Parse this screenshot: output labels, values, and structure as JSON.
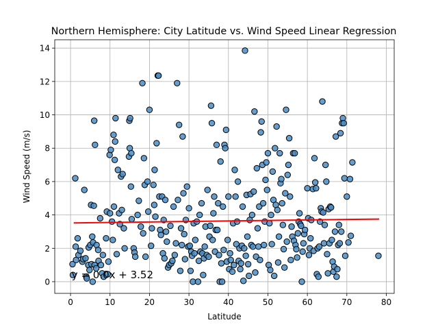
{
  "chart_data": {
    "type": "scatter",
    "title": "Northern Hemisphere: City Latitude vs. Wind Speed Linear Regression",
    "xlabel": "Latitude",
    "ylabel": "Wind Speed (m/s)",
    "xlim": [
      -4,
      82
    ],
    "ylim": [
      -0.7,
      14.5
    ],
    "xticks": [
      0,
      10,
      20,
      30,
      40,
      50,
      60,
      70,
      80
    ],
    "yticks": [
      0,
      2,
      4,
      6,
      8,
      10,
      12,
      14
    ],
    "grid": true,
    "point_color": "#4a8cc4",
    "point_edge_color": "#000000",
    "regression": {
      "equation": "y = 0.0x + 3.52",
      "slope": 0.003,
      "intercept": 3.52,
      "x_range": [
        0.8,
        78.2
      ],
      "color": "#ff0000",
      "label_position": [
        0.3,
        0.2
      ]
    },
    "points": [
      [
        0.5,
        1.05
      ],
      [
        0.6,
        0.4
      ],
      [
        1.2,
        6.2
      ],
      [
        1.3,
        2.1
      ],
      [
        1.4,
        1.3
      ],
      [
        1.8,
        2.6
      ],
      [
        2.0,
        1.6
      ],
      [
        2.5,
        1.85
      ],
      [
        3.0,
        1.2
      ],
      [
        3.2,
        1.35
      ],
      [
        3.5,
        5.5
      ],
      [
        3.8,
        1.4
      ],
      [
        4.0,
        0.3
      ],
      [
        4.1,
        0.2
      ],
      [
        4.5,
        1.0
      ],
      [
        4.6,
        2.05
      ],
      [
        4.8,
        0.7
      ],
      [
        5.0,
        2.2
      ],
      [
        5.2,
        4.6
      ],
      [
        5.3,
        1.05
      ],
      [
        5.5,
        2.7
      ],
      [
        5.6,
        0.0
      ],
      [
        5.7,
        2.35
      ],
      [
        5.9,
        4.55
      ],
      [
        6.0,
        9.65
      ],
      [
        6.1,
        1.0
      ],
      [
        6.2,
        8.2
      ],
      [
        6.5,
        0.8
      ],
      [
        6.6,
        2.2
      ],
      [
        7.0,
        1.9
      ],
      [
        7.1,
        1.25
      ],
      [
        7.5,
        3.8
      ],
      [
        7.7,
        1.0
      ],
      [
        8.0,
        0.5
      ],
      [
        8.2,
        1.6
      ],
      [
        8.4,
        0.3
      ],
      [
        9.0,
        2.6
      ],
      [
        9.2,
        4.2
      ],
      [
        9.4,
        0.45
      ],
      [
        9.6,
        1.2
      ],
      [
        9.9,
        7.6
      ],
      [
        10.0,
        4.1
      ],
      [
        10.2,
        7.9
      ],
      [
        10.5,
        3.6
      ],
      [
        10.7,
        2.5
      ],
      [
        10.9,
        8.8
      ],
      [
        11.0,
        4.5
      ],
      [
        11.2,
        7.3
      ],
      [
        11.3,
        8.4
      ],
      [
        11.4,
        9.8
      ],
      [
        11.7,
        1.65
      ],
      [
        12.0,
        6.7
      ],
      [
        12.3,
        4.1
      ],
      [
        12.5,
        3.45
      ],
      [
        12.8,
        6.3
      ],
      [
        13.0,
        4.3
      ],
      [
        13.2,
        6.45
      ],
      [
        13.5,
        3.2
      ],
      [
        13.7,
        2.0
      ],
      [
        14.8,
        7.5
      ],
      [
        14.9,
        9.65
      ],
      [
        15.0,
        8.0
      ],
      [
        15.1,
        9.8
      ],
      [
        15.3,
        5.7
      ],
      [
        15.4,
        7.7
      ],
      [
        15.5,
        3.75
      ],
      [
        16.0,
        2.0
      ],
      [
        16.2,
        1.75
      ],
      [
        16.4,
        1.5
      ],
      [
        17.0,
        4.0
      ],
      [
        17.3,
        4.85
      ],
      [
        17.8,
        3.3
      ],
      [
        18.2,
        11.9
      ],
      [
        18.4,
        2.9
      ],
      [
        18.6,
        7.4
      ],
      [
        18.8,
        5.8
      ],
      [
        19.0,
        1.5
      ],
      [
        19.5,
        6.0
      ],
      [
        19.7,
        4.2
      ],
      [
        20.0,
        10.3
      ],
      [
        20.4,
        2.15
      ],
      [
        20.6,
        3.2
      ],
      [
        21.0,
        5.8
      ],
      [
        21.2,
        4.6
      ],
      [
        21.3,
        6.7
      ],
      [
        21.5,
        3.9
      ],
      [
        21.8,
        8.3
      ],
      [
        22.1,
        12.35
      ],
      [
        22.3,
        12.35
      ],
      [
        22.5,
        5.1
      ],
      [
        22.7,
        3.1
      ],
      [
        22.9,
        2.8
      ],
      [
        23.2,
        5.1
      ],
      [
        23.4,
        1.7
      ],
      [
        23.6,
        3.7
      ],
      [
        23.8,
        1.4
      ],
      [
        24.0,
        4.9
      ],
      [
        24.2,
        3.0
      ],
      [
        24.4,
        2.4
      ],
      [
        24.7,
        0.85
      ],
      [
        25.0,
        1.0
      ],
      [
        25.3,
        3.35
      ],
      [
        25.5,
        1.1
      ],
      [
        25.8,
        1.25
      ],
      [
        26.1,
        4.5
      ],
      [
        26.4,
        1.6
      ],
      [
        26.7,
        2.3
      ],
      [
        27.0,
        11.9
      ],
      [
        27.2,
        4.9
      ],
      [
        27.5,
        9.4
      ],
      [
        27.8,
        0.65
      ],
      [
        28.0,
        3.2
      ],
      [
        28.2,
        2.2
      ],
      [
        28.4,
        8.7
      ],
      [
        28.6,
        5.3
      ],
      [
        28.8,
        2.85
      ],
      [
        29.0,
        1.35
      ],
      [
        29.2,
        3.7
      ],
      [
        29.5,
        5.7
      ],
      [
        29.8,
        2.1
      ],
      [
        30.0,
        4.4
      ],
      [
        30.2,
        2.15
      ],
      [
        30.4,
        0.65
      ],
      [
        30.6,
        1.8
      ],
      [
        30.8,
        1.55
      ],
      [
        31.0,
        0.0
      ],
      [
        31.2,
        3.5
      ],
      [
        31.4,
        1.7
      ],
      [
        31.6,
        2.5
      ],
      [
        32.0,
        3.6
      ],
      [
        32.3,
        0.0
      ],
      [
        32.5,
        1.25
      ],
      [
        32.7,
        4.0
      ],
      [
        32.9,
        1.8
      ],
      [
        33.2,
        4.7
      ],
      [
        33.4,
        1.7
      ],
      [
        33.6,
        0.4
      ],
      [
        33.8,
        1.4
      ],
      [
        34.0,
        2.1
      ],
      [
        34.2,
        3.3
      ],
      [
        34.5,
        1.6
      ],
      [
        34.7,
        5.5
      ],
      [
        35.0,
        1.5
      ],
      [
        35.2,
        2.7
      ],
      [
        35.4,
        3.35
      ],
      [
        35.6,
        10.55
      ],
      [
        35.8,
        9.5
      ],
      [
        36.0,
        2.5
      ],
      [
        36.2,
        4.1
      ],
      [
        36.4,
        5.1
      ],
      [
        36.6,
        1.8
      ],
      [
        36.8,
        3.1
      ],
      [
        37.0,
        8.2
      ],
      [
        37.2,
        3.1
      ],
      [
        37.4,
        4.7
      ],
      [
        37.6,
        1.6
      ],
      [
        37.8,
        0.0
      ],
      [
        38.0,
        7.2
      ],
      [
        38.2,
        1.1
      ],
      [
        38.4,
        0.0
      ],
      [
        38.6,
        4.5
      ],
      [
        38.8,
        1.9
      ],
      [
        39.0,
        8.2
      ],
      [
        39.2,
        8.0
      ],
      [
        39.4,
        9.1
      ],
      [
        39.6,
        1.2
      ],
      [
        39.8,
        2.5
      ],
      [
        40.0,
        5.1
      ],
      [
        40.2,
        0.75
      ],
      [
        40.4,
        1.7
      ],
      [
        40.6,
        1.3
      ],
      [
        41.0,
        0.6
      ],
      [
        41.2,
        3.5
      ],
      [
        41.4,
        1.0
      ],
      [
        41.6,
        6.7
      ],
      [
        41.8,
        5.1
      ],
      [
        42.0,
        2.25
      ],
      [
        42.2,
        3.6
      ],
      [
        42.4,
        6.0
      ],
      [
        42.6,
        1.25
      ],
      [
        42.8,
        2.0
      ],
      [
        43.0,
        0.75
      ],
      [
        43.2,
        1.1
      ],
      [
        43.4,
        2.15
      ],
      [
        43.6,
        4.5
      ],
      [
        43.8,
        0.05
      ],
      [
        44.0,
        2.0
      ],
      [
        44.2,
        13.85
      ],
      [
        44.4,
        1.55
      ],
      [
        44.6,
        5.2
      ],
      [
        44.8,
        2.7
      ],
      [
        45.0,
        1.05
      ],
      [
        45.2,
        0.35
      ],
      [
        45.4,
        3.7
      ],
      [
        45.6,
        5.25
      ],
      [
        45.8,
        2.2
      ],
      [
        46.0,
        4.0
      ],
      [
        46.2,
        2.1
      ],
      [
        46.4,
        5.4
      ],
      [
        46.6,
        10.2
      ],
      [
        46.8,
        0.55
      ],
      [
        47.0,
        1.5
      ],
      [
        47.2,
        6.8
      ],
      [
        47.4,
        3.2
      ],
      [
        47.6,
        2.1
      ],
      [
        47.8,
        4.5
      ],
      [
        48.0,
        1.3
      ],
      [
        48.2,
        8.95
      ],
      [
        48.4,
        9.6
      ],
      [
        48.6,
        7.0
      ],
      [
        48.8,
        4.7
      ],
      [
        49.0,
        2.2
      ],
      [
        49.2,
        3.6
      ],
      [
        49.4,
        6.1
      ],
      [
        49.6,
        7.15
      ],
      [
        49.8,
        5.5
      ],
      [
        50.0,
        7.7
      ],
      [
        50.2,
        1.0
      ],
      [
        50.4,
        3.5
      ],
      [
        50.6,
        0.7
      ],
      [
        50.8,
        4.0
      ],
      [
        51.0,
        2.25
      ],
      [
        51.2,
        6.6
      ],
      [
        51.4,
        4.9
      ],
      [
        51.6,
        0.35
      ],
      [
        51.8,
        8.0
      ],
      [
        52.0,
        4.6
      ],
      [
        52.2,
        9.3
      ],
      [
        52.4,
        4.3
      ],
      [
        52.6,
        1.15
      ],
      [
        52.8,
        2.7
      ],
      [
        53.0,
        7.7
      ],
      [
        53.2,
        5.9
      ],
      [
        53.4,
        6.15
      ],
      [
        53.6,
        4.7
      ],
      [
        53.8,
        3.4
      ],
      [
        54.0,
        1.95
      ],
      [
        54.2,
        0.85
      ],
      [
        54.4,
        5.3
      ],
      [
        54.6,
        10.3
      ],
      [
        54.8,
        2.4
      ],
      [
        55.0,
        6.4
      ],
      [
        55.2,
        7.0
      ],
      [
        55.4,
        8.6
      ],
      [
        55.6,
        5.1
      ],
      [
        55.8,
        1.3
      ],
      [
        56.0,
        3.3
      ],
      [
        56.2,
        2.7
      ],
      [
        56.4,
        7.7
      ],
      [
        56.6,
        2.45
      ],
      [
        56.8,
        7.7
      ],
      [
        57.0,
        2.2
      ],
      [
        57.2,
        1.95
      ],
      [
        57.4,
        1.45
      ],
      [
        57.6,
        2.9
      ],
      [
        57.8,
        3.6
      ],
      [
        58.0,
        4.1
      ],
      [
        58.2,
        3.45
      ],
      [
        58.4,
        3.35
      ],
      [
        58.6,
        0.0
      ],
      [
        58.8,
        1.8
      ],
      [
        59.0,
        2.3
      ],
      [
        59.2,
        2.85
      ],
      [
        59.4,
        3.1
      ],
      [
        60.0,
        5.6
      ],
      [
        60.2,
        3.8
      ],
      [
        60.4,
        1.6
      ],
      [
        60.6,
        2.0
      ],
      [
        60.8,
        2.6
      ],
      [
        61.0,
        3.7
      ],
      [
        61.4,
        5.55
      ],
      [
        61.6,
        1.85
      ],
      [
        61.8,
        7.4
      ],
      [
        62.0,
        5.95
      ],
      [
        62.2,
        5.6
      ],
      [
        62.4,
        0.45
      ],
      [
        62.6,
        2.0
      ],
      [
        62.8,
        0.3
      ],
      [
        63.0,
        2.1
      ],
      [
        63.2,
        3.6
      ],
      [
        63.4,
        4.4
      ],
      [
        63.6,
        4.2
      ],
      [
        63.8,
        10.8
      ],
      [
        64.0,
        4.15
      ],
      [
        64.2,
        2.3
      ],
      [
        64.4,
        3.4
      ],
      [
        64.6,
        7.0
      ],
      [
        64.8,
        6.0
      ],
      [
        65.0,
        1.65
      ],
      [
        65.2,
        0.5
      ],
      [
        65.4,
        4.35
      ],
      [
        65.6,
        2.3
      ],
      [
        65.8,
        4.5
      ],
      [
        66.0,
        4.45
      ],
      [
        66.2,
        2.5
      ],
      [
        66.4,
        1.2
      ],
      [
        66.6,
        0.6
      ],
      [
        66.8,
        0.9
      ],
      [
        67.0,
        3.0
      ],
      [
        67.2,
        8.7
      ],
      [
        67.4,
        0.3
      ],
      [
        67.6,
        0.75
      ],
      [
        67.8,
        2.2
      ],
      [
        68.0,
        3.4
      ],
      [
        68.2,
        2.3
      ],
      [
        68.4,
        8.9
      ],
      [
        68.6,
        3.0
      ],
      [
        68.8,
        9.5
      ],
      [
        69.0,
        9.8
      ],
      [
        69.2,
        9.5
      ],
      [
        69.4,
        6.2
      ],
      [
        69.6,
        1.55
      ],
      [
        70.0,
        5.1
      ],
      [
        70.4,
        2.35
      ],
      [
        70.8,
        6.15
      ],
      [
        71.0,
        2.75
      ],
      [
        71.4,
        7.15
      ],
      [
        78.0,
        1.55
      ]
    ]
  }
}
